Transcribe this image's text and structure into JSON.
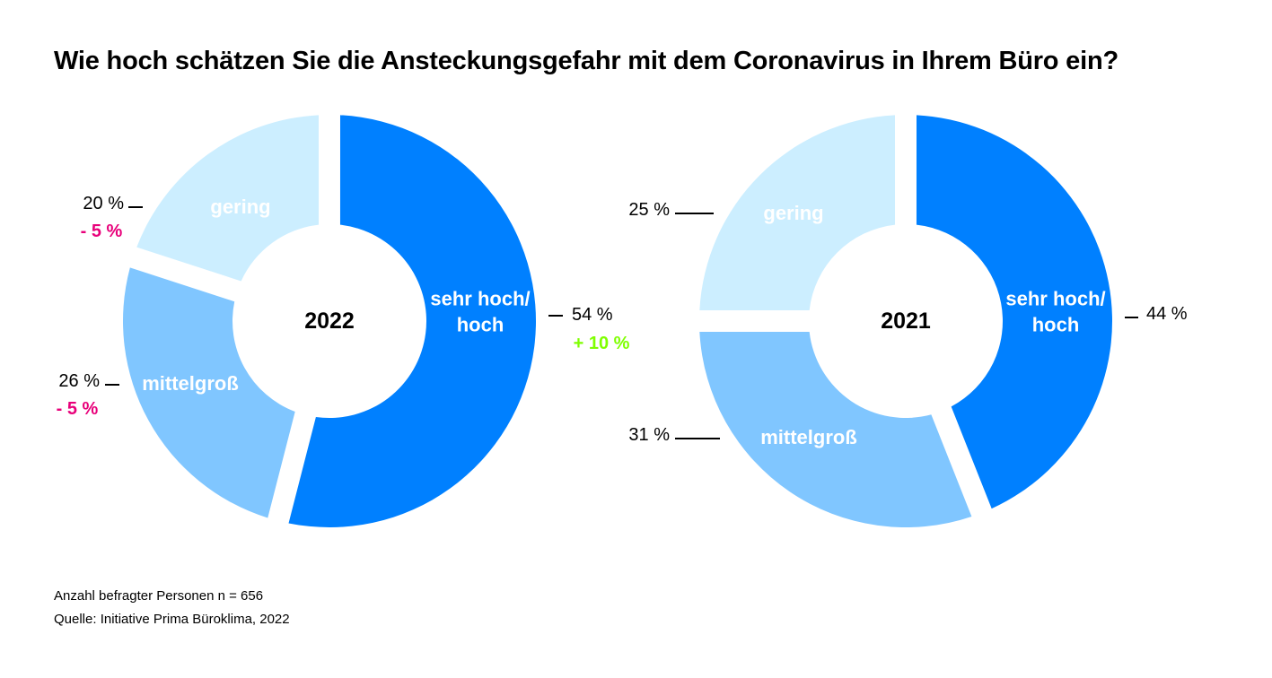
{
  "title": "Wie hoch schätzen Sie die Ansteckungsgefahr mit dem Coronavirus in Ihrem Büro ein?",
  "footnotes": [
    "Anzahl befragter Personen n = 656",
    "Quelle: Initiative Prima Büroklima, 2022"
  ],
  "colors": {
    "sehr_hoch": "#0080ff",
    "mittelgross": "#80c6ff",
    "gering": "#cceeff",
    "increase": "#7fff00",
    "decrease": "#e8007a"
  },
  "chart_data": [
    {
      "type": "pie",
      "center_label": "2022",
      "slices": [
        {
          "key": "sehr_hoch",
          "label": "sehr hoch/ hoch",
          "lines": [
            "sehr hoch/",
            "hoch"
          ],
          "value": 54,
          "value_label": "54 %",
          "change": "+ 10 %",
          "change_dir": "increase"
        },
        {
          "key": "mittelgross",
          "label": "mittelgroß",
          "lines": [
            "mittelgroß"
          ],
          "value": 26,
          "value_label": "26 %",
          "change": "- 5 %",
          "change_dir": "decrease"
        },
        {
          "key": "gering",
          "label": "gering",
          "lines": [
            "gering"
          ],
          "value": 20,
          "value_label": "20 %",
          "change": "- 5 %",
          "change_dir": "decrease"
        }
      ]
    },
    {
      "type": "pie",
      "center_label": "2021",
      "slices": [
        {
          "key": "sehr_hoch",
          "label": "sehr hoch/ hoch",
          "lines": [
            "sehr hoch/",
            "hoch"
          ],
          "value": 44,
          "value_label": "44 %"
        },
        {
          "key": "mittelgross",
          "label": "mittelgroß",
          "lines": [
            "mittelgroß"
          ],
          "value": 31,
          "value_label": "31 %"
        },
        {
          "key": "gering",
          "label": "gering",
          "lines": [
            "gering"
          ],
          "value": 25,
          "value_label": "25 %"
        }
      ]
    }
  ]
}
